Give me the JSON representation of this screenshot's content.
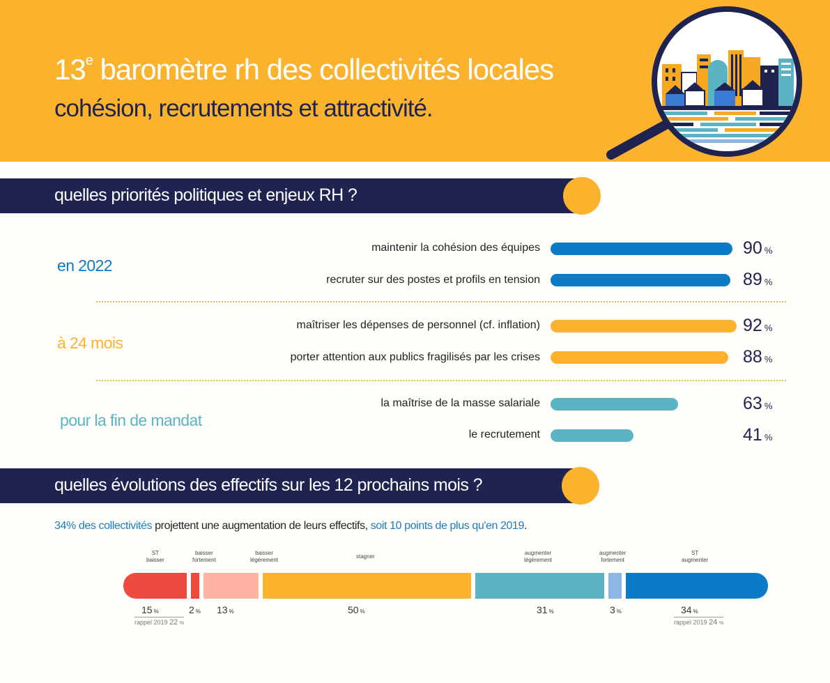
{
  "header": {
    "title_num": "13",
    "title_sup": "e",
    "title_rest": " baromètre rh des collectivités locales",
    "subtitle": "cohésion, recrutements et attractivité."
  },
  "section1": {
    "title": "quelles priorités politiques et enjeux RH ?"
  },
  "section2": {
    "title": "quelles évolutions des effectifs sur les 12 prochains mois ?"
  },
  "colors": {
    "orange": "#fbb32e",
    "navy": "#1e2350",
    "blue": "#0a7cc7",
    "teal": "#5bb4c4",
    "red": "#ef4a3f",
    "salmon": "#ffb3a3",
    "lightblue": "#8db7e3"
  },
  "chart_data": [
    {
      "type": "bar",
      "groups": [
        {
          "label": "en 2022",
          "color": "#0a7cc7",
          "items": [
            {
              "label": "maintenir la cohésion des équipes",
              "value": 90,
              "unit": "%"
            },
            {
              "label": "recruter sur des postes et profils en tension",
              "value": 89,
              "unit": "%"
            }
          ]
        },
        {
          "label": "à 24 mois",
          "color": "#fbb32e",
          "items": [
            {
              "label": "maîtriser les dépenses de personnel (cf. inflation)",
              "value": 92,
              "unit": "%"
            },
            {
              "label": "porter attention aux publics fragilisés par les crises",
              "value": 88,
              "unit": "%"
            }
          ]
        },
        {
          "label": "pour la fin de mandat",
          "color": "#5bb4c4",
          "items": [
            {
              "label": "la maîtrise de la masse salariale",
              "value": 63,
              "unit": "%"
            },
            {
              "label": "le recrutement",
              "value": 41,
              "unit": "%"
            }
          ]
        }
      ],
      "xlim": [
        0,
        100
      ]
    },
    {
      "type": "bar",
      "stacked": true,
      "intro": {
        "part1": "34% des collectivités",
        "part2": " projettent une augmentation de leurs effectifs, ",
        "part3": "soit 10 points de plus qu'en 2019",
        "part4": "."
      },
      "segments": [
        {
          "name": "ST baisser",
          "value": 15,
          "color": "#ef4a3f"
        },
        {
          "name": "baisser fortement",
          "value": 2,
          "color": "#ef4a3f"
        },
        {
          "name": "baisser légèrement",
          "value": 13,
          "color": "#ffb3a3"
        },
        {
          "name": "stagner",
          "value": 50,
          "color": "#fbb32e"
        },
        {
          "name": "augmenter légèrement",
          "value": 31,
          "color": "#5bb4c4"
        },
        {
          "name": "augmenter fortement",
          "value": 3,
          "color": "#8db7e3"
        },
        {
          "name": "ST augmenter",
          "value": 34,
          "color": "#0a7cc7"
        }
      ],
      "category_labels": {
        "st_baisser": [
          "ST",
          "baisser"
        ],
        "baisser_fortement": [
          "baisser",
          "fortement"
        ],
        "baisser_legerement": [
          "baisser",
          "légèrement"
        ],
        "stagner": [
          "stagner"
        ],
        "augmenter_legerement": [
          "augmenter",
          "légèrement"
        ],
        "augmenter_fortement": [
          "augmenter",
          "fortement"
        ],
        "st_augmenter": [
          "ST",
          "augmenter"
        ]
      },
      "rappel": [
        {
          "label": "rappel 2019",
          "value": 22,
          "unit": "%",
          "ref": "ST baisser"
        },
        {
          "label": "rappel 2019",
          "value": 24,
          "unit": "%",
          "ref": "ST augmenter"
        }
      ]
    }
  ]
}
